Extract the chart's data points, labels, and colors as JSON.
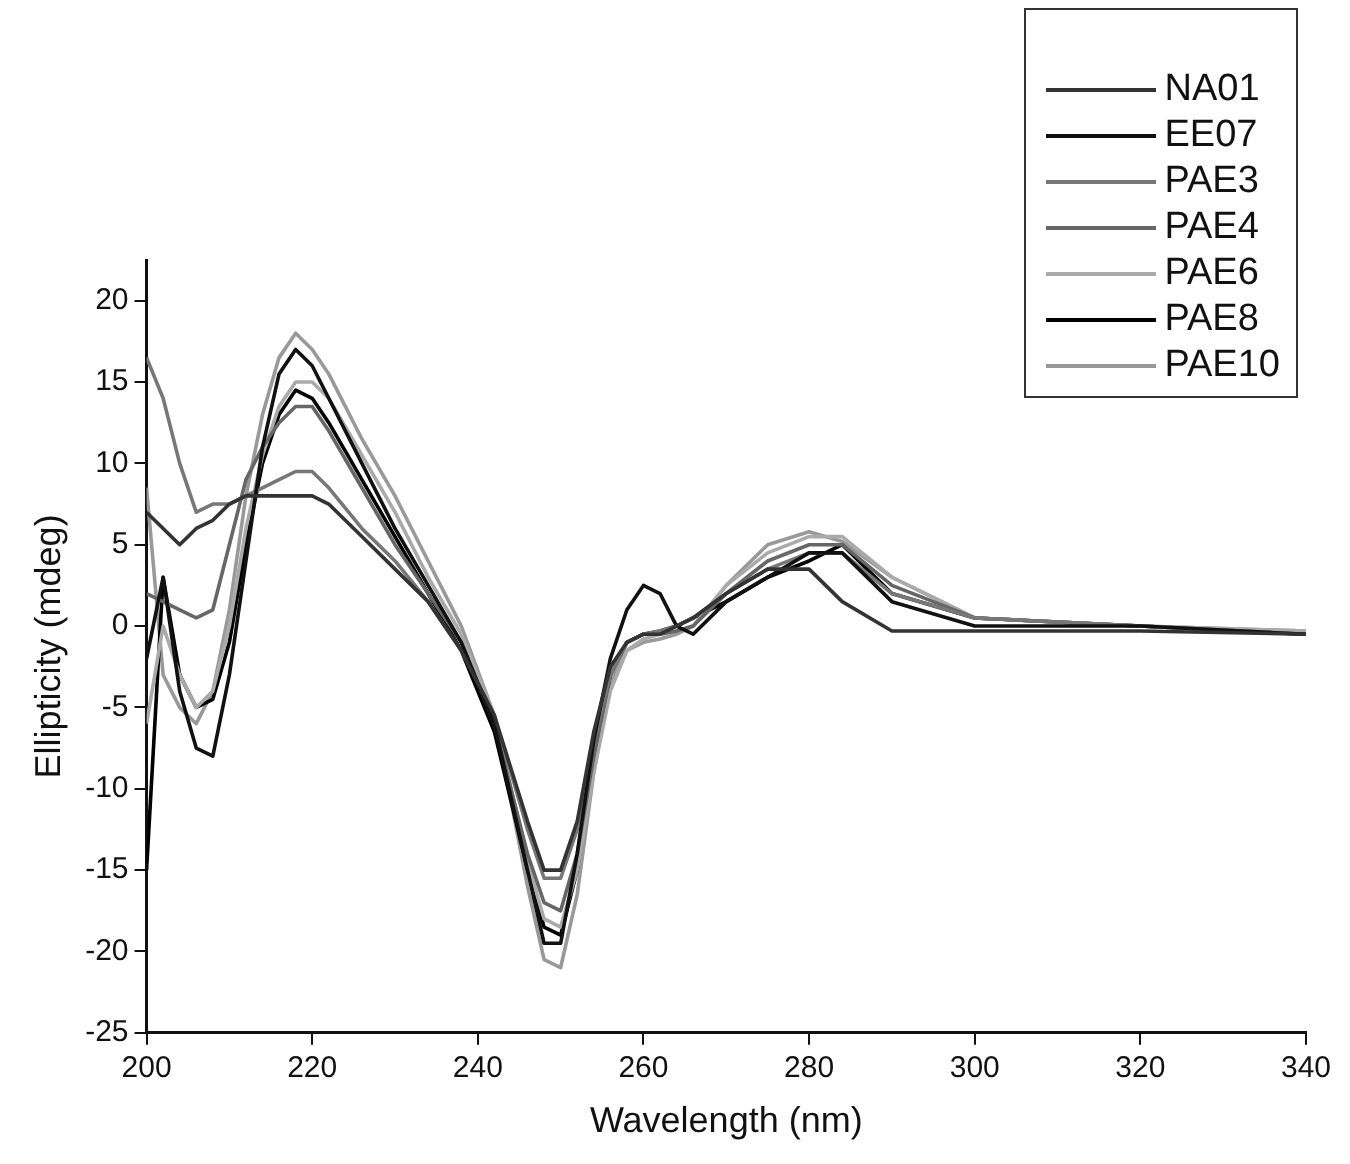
{
  "chart_data": {
    "type": "line",
    "xlabel": "Wavelength (nm)",
    "ylabel": "Ellipticity (mdeg)",
    "x": [
      200,
      202,
      204,
      206,
      208,
      210,
      212,
      214,
      216,
      218,
      220,
      222,
      226,
      230,
      234,
      238,
      242,
      246,
      248,
      250,
      252,
      254,
      256,
      258,
      260,
      262,
      264,
      266,
      270,
      275,
      280,
      284,
      290,
      300,
      320,
      340
    ],
    "series": [
      {
        "name": "NA01",
        "color": "#333333",
        "values": [
          7,
          6,
          5,
          6,
          6.5,
          7.5,
          8,
          8,
          8,
          8,
          8,
          7.5,
          5.5,
          3.5,
          1.5,
          -1.5,
          -5.5,
          -12,
          -15,
          -15,
          -12,
          -6.5,
          -2.5,
          -1,
          -0.5,
          -0.5,
          0,
          0.5,
          2,
          3.5,
          3.5,
          1.5,
          -0.3,
          -0.3,
          -0.3,
          -0.5
        ]
      },
      {
        "name": "EE07",
        "color": "#111111",
        "values": [
          -2,
          3,
          -4,
          -7.5,
          -8,
          -3,
          4,
          11,
          15.5,
          17,
          16,
          14,
          10,
          6,
          2.5,
          -1,
          -6,
          -15,
          -19.5,
          -19.5,
          -14,
          -7,
          -2,
          1,
          2.5,
          2,
          0,
          -0.5,
          1.5,
          3,
          4.5,
          4.5,
          1.5,
          0,
          0,
          -0.5
        ]
      },
      {
        "name": "PAE3",
        "color": "#777777",
        "values": [
          16.5,
          14,
          10,
          7,
          7.5,
          7.5,
          8,
          8.5,
          9,
          9.5,
          9.5,
          8.5,
          6,
          4,
          1.5,
          -1.5,
          -5.5,
          -12.5,
          -15.5,
          -15.5,
          -12.5,
          -7,
          -3,
          -1,
          -0.5,
          -0.3,
          0,
          0.5,
          2,
          3.5,
          4.5,
          4.5,
          2,
          0.5,
          0,
          -0.5
        ]
      },
      {
        "name": "PAE4",
        "color": "#666666",
        "values": [
          2,
          1.5,
          1,
          0.5,
          1,
          5,
          9,
          11,
          12.5,
          13.5,
          13.5,
          12,
          8.5,
          5,
          2,
          -1,
          -6,
          -14,
          -17,
          -17.5,
          -14,
          -8,
          -3,
          -1,
          -0.5,
          -0.5,
          -0.3,
          0,
          2,
          4,
          5,
          5,
          2.5,
          0.5,
          0,
          -0.5
        ]
      },
      {
        "name": "PAE6",
        "color": "#aaaaaa",
        "values": [
          -6,
          0,
          -3,
          -5,
          -4,
          0,
          6,
          10.5,
          13.5,
          15,
          15,
          14,
          10.5,
          7,
          3,
          -0.5,
          -5.5,
          -14.5,
          -18,
          -18.5,
          -15,
          -9,
          -4,
          -1.5,
          -0.8,
          -0.5,
          -0.3,
          0,
          2.5,
          4.5,
          5.5,
          5.5,
          3,
          0.5,
          0,
          -0.3
        ]
      },
      {
        "name": "PAE8",
        "color": "#000000",
        "values": [
          -15,
          3,
          -3,
          -5,
          -4.5,
          -1,
          5,
          10,
          13,
          14.5,
          14,
          12.5,
          9,
          5.5,
          2,
          -1.5,
          -6.5,
          -15,
          -18.5,
          -19,
          -15,
          -8,
          -3,
          -1,
          -0.5,
          -0.3,
          0,
          0.5,
          1.5,
          3,
          4,
          5,
          2,
          0.5,
          0,
          -0.5
        ]
      },
      {
        "name": "PAE10",
        "color": "#999999",
        "values": [
          8.5,
          -3,
          -5,
          -6,
          -4,
          1,
          8,
          13,
          16.5,
          18,
          17,
          15.5,
          11.5,
          8,
          4,
          0,
          -5.5,
          -16,
          -20.5,
          -21,
          -16.5,
          -9,
          -3.5,
          -1.5,
          -1,
          -0.8,
          -0.5,
          0,
          2.5,
          5,
          5.8,
          5.2,
          3,
          0.5,
          0,
          -0.3
        ]
      }
    ],
    "xlim": [
      200,
      340
    ],
    "xticks": [
      200,
      220,
      240,
      260,
      280,
      300,
      320,
      340
    ],
    "ylim": [
      -25,
      22.5
    ],
    "yticks": [
      -25,
      -20,
      -15,
      -10,
      -5,
      0,
      5,
      10,
      15,
      20
    ],
    "grid": false,
    "legend": "top right",
    "marker": "none",
    "line_style": "solid"
  }
}
